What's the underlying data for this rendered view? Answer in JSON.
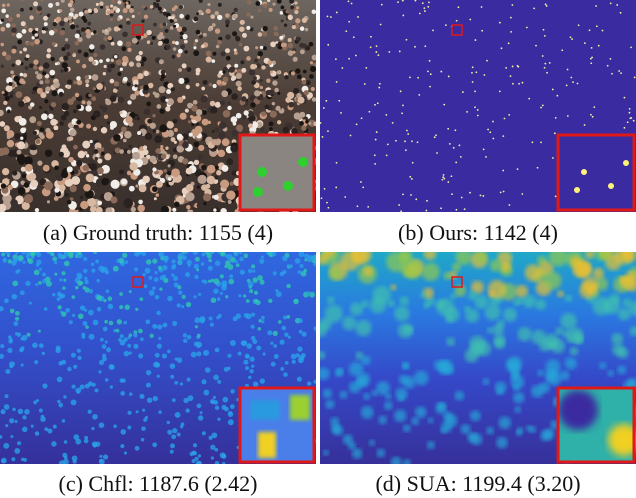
{
  "panels": [
    {
      "caption": "(a) Ground truth: 1155 (4)"
    },
    {
      "caption": "(b) Ours: 1142 (4)"
    },
    {
      "caption": "(c) Chfl: 1187.6 (2.42)"
    },
    {
      "caption": "(d) SUA: 1199.4 (3.20)"
    }
  ]
}
